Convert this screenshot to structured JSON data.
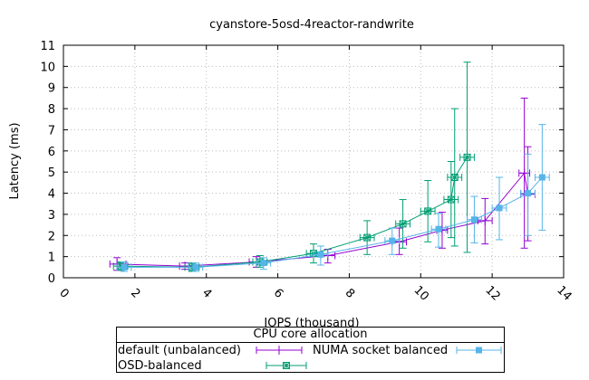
{
  "chart_data": {
    "type": "line",
    "title": "cyanstore-5osd-4reactor-randwrite",
    "xlabel": "IOPS (thousand)",
    "ylabel": "Latency (ms)",
    "xlim": [
      0,
      14
    ],
    "ylim": [
      0,
      11
    ],
    "xticks": [
      0,
      2,
      4,
      6,
      8,
      10,
      12,
      14
    ],
    "yticks": [
      0,
      1,
      2,
      3,
      4,
      5,
      6,
      7,
      8,
      9,
      10,
      11
    ],
    "grid": true,
    "legend_title": "CPU core allocation",
    "legend_position": "bottom",
    "series": [
      {
        "name": "default (unbalanced)",
        "color": "#9400d3",
        "marker": "plus",
        "points": [
          {
            "x": 1.5,
            "y": 0.65,
            "ylo": 0.35,
            "yhi": 0.95,
            "xlo": 1.3,
            "xhi": 1.75
          },
          {
            "x": 3.4,
            "y": 0.55,
            "ylo": 0.4,
            "yhi": 0.7,
            "xlo": 3.25,
            "xhi": 3.6
          },
          {
            "x": 5.4,
            "y": 0.75,
            "ylo": 0.5,
            "yhi": 1.0,
            "xlo": 5.2,
            "xhi": 5.6
          },
          {
            "x": 7.4,
            "y": 1.05,
            "ylo": 0.7,
            "yhi": 1.35,
            "xlo": 7.2,
            "xhi": 7.6
          },
          {
            "x": 9.4,
            "y": 1.7,
            "ylo": 1.1,
            "yhi": 2.35,
            "xlo": 9.2,
            "xhi": 9.6
          },
          {
            "x": 10.6,
            "y": 2.25,
            "ylo": 1.4,
            "yhi": 3.1,
            "xlo": 10.45,
            "xhi": 10.75
          },
          {
            "x": 11.8,
            "y": 2.7,
            "ylo": 1.6,
            "yhi": 3.75,
            "xlo": 11.6,
            "xhi": 12.0
          },
          {
            "x": 12.9,
            "y": 4.95,
            "ylo": 1.4,
            "yhi": 8.5,
            "xlo": 12.75,
            "xhi": 13.05
          },
          {
            "x": 13.0,
            "y": 3.95,
            "ylo": 1.75,
            "yhi": 6.2,
            "xlo": 12.8,
            "xhi": 13.2
          }
        ]
      },
      {
        "name": "NUMA socket balanced",
        "color": "#56b4e9",
        "marker": "square",
        "points": [
          {
            "x": 1.7,
            "y": 0.5,
            "ylo": 0.3,
            "yhi": 0.75,
            "xlo": 1.5,
            "xhi": 1.9
          },
          {
            "x": 3.7,
            "y": 0.5,
            "ylo": 0.3,
            "yhi": 0.7,
            "xlo": 3.5,
            "xhi": 3.9
          },
          {
            "x": 5.6,
            "y": 0.7,
            "ylo": 0.4,
            "yhi": 0.95,
            "xlo": 5.4,
            "xhi": 5.8
          },
          {
            "x": 7.2,
            "y": 1.1,
            "ylo": 0.6,
            "yhi": 1.5,
            "xlo": 7.0,
            "xhi": 7.4
          },
          {
            "x": 9.2,
            "y": 1.75,
            "ylo": 1.1,
            "yhi": 2.35,
            "xlo": 9.0,
            "xhi": 9.4
          },
          {
            "x": 10.5,
            "y": 2.3,
            "ylo": 1.45,
            "yhi": 3.05,
            "xlo": 10.3,
            "xhi": 10.7
          },
          {
            "x": 11.5,
            "y": 2.75,
            "ylo": 1.65,
            "yhi": 3.85,
            "xlo": 11.3,
            "xhi": 11.7
          },
          {
            "x": 12.2,
            "y": 3.3,
            "ylo": 1.8,
            "yhi": 4.75,
            "xlo": 12.0,
            "xhi": 12.4
          },
          {
            "x": 13.0,
            "y": 4.0,
            "ylo": 2.0,
            "yhi": 5.85,
            "xlo": 12.8,
            "xhi": 13.2
          },
          {
            "x": 13.4,
            "y": 4.75,
            "ylo": 2.25,
            "yhi": 7.25,
            "xlo": 13.2,
            "xhi": 13.6
          }
        ]
      },
      {
        "name": "OSD-balanced",
        "color": "#009e73",
        "marker": "star",
        "points": [
          {
            "x": 1.6,
            "y": 0.55,
            "ylo": 0.35,
            "yhi": 0.75,
            "xlo": 1.4,
            "xhi": 1.8
          },
          {
            "x": 3.6,
            "y": 0.5,
            "ylo": 0.3,
            "yhi": 0.7,
            "xlo": 3.4,
            "xhi": 3.8
          },
          {
            "x": 5.5,
            "y": 0.75,
            "ylo": 0.5,
            "yhi": 1.05,
            "xlo": 5.3,
            "xhi": 5.7
          },
          {
            "x": 7.0,
            "y": 1.15,
            "ylo": 0.7,
            "yhi": 1.6,
            "xlo": 6.8,
            "xhi": 7.2
          },
          {
            "x": 8.5,
            "y": 1.9,
            "ylo": 1.1,
            "yhi": 2.7,
            "xlo": 8.3,
            "xhi": 8.7
          },
          {
            "x": 9.5,
            "y": 2.55,
            "ylo": 1.4,
            "yhi": 3.7,
            "xlo": 9.3,
            "xhi": 9.7
          },
          {
            "x": 10.2,
            "y": 3.15,
            "ylo": 1.7,
            "yhi": 4.6,
            "xlo": 10.0,
            "xhi": 10.4
          },
          {
            "x": 10.85,
            "y": 3.7,
            "ylo": 1.9,
            "yhi": 5.5,
            "xlo": 10.65,
            "xhi": 11.05
          },
          {
            "x": 10.95,
            "y": 4.75,
            "ylo": 1.5,
            "yhi": 8.0,
            "xlo": 10.75,
            "xhi": 11.15
          },
          {
            "x": 11.3,
            "y": 5.7,
            "ylo": 1.2,
            "yhi": 10.2,
            "xlo": 11.1,
            "xhi": 11.5
          }
        ]
      }
    ]
  }
}
